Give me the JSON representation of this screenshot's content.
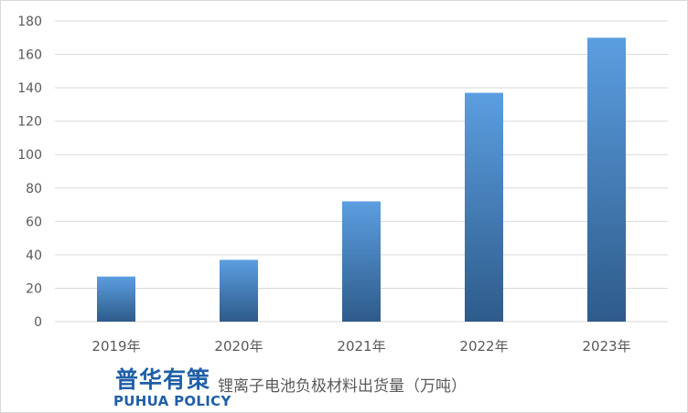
{
  "brand": {
    "name_cn": "普华有策",
    "name_en": "PUHUA POLICY"
  },
  "chart_data": {
    "type": "bar",
    "title": "锂离子电池负极材料出货量（万吨）",
    "categories": [
      "2019年",
      "2020年",
      "2021年",
      "2022年",
      "2023年"
    ],
    "values": [
      27,
      37,
      72,
      137,
      170
    ],
    "xlabel": "",
    "ylabel": "",
    "ylim": [
      0,
      180
    ],
    "yticks": [
      0,
      20,
      40,
      60,
      80,
      100,
      120,
      140,
      160,
      180
    ],
    "grid": true,
    "legend": "none",
    "colors": {
      "bar_top": "#5b9ee0",
      "bar_bottom": "#2e5b8a",
      "grid": "#d9d9d9"
    }
  }
}
